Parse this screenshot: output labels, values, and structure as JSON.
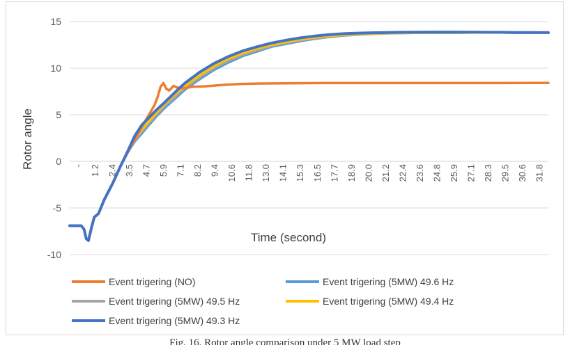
{
  "caption": "Fig. 16. Rotor angle comparison under 5 MW load step",
  "chart_data": {
    "type": "line",
    "title": "",
    "xlabel": "Time (second)",
    "ylabel": "Rotor angle",
    "xlim": [
      0,
      33.2
    ],
    "ylim": [
      -10,
      15
    ],
    "yticks": [
      -10,
      -5,
      0,
      5,
      10,
      15
    ],
    "xtick_labels": [
      "-",
      "1.2",
      "2.4",
      "3.5",
      "4.7",
      "5.9",
      "7.1",
      "8.2",
      "9.4",
      "10.6",
      "11.8",
      "13.0",
      "14.1",
      "15.3",
      "16.5",
      "17.7",
      "18.9",
      "20.0",
      "21.2",
      "22.4",
      "23.6",
      "24.8",
      "25.9",
      "27.1",
      "28.3",
      "29.5",
      "30.6",
      "31.8"
    ],
    "grid": true,
    "legend_position": "bottom",
    "series": [
      {
        "name": "Event trigering (NO)",
        "color": "#ED7D31",
        "x": [
          0,
          0.8,
          1.0,
          1.15,
          1.3,
          1.5,
          1.7,
          2.0,
          2.4,
          3.0,
          3.5,
          4.0,
          4.5,
          5.0,
          5.5,
          5.9,
          6.1,
          6.3,
          6.5,
          6.7,
          6.9,
          7.2,
          7.5,
          8.0,
          8.5,
          9.4,
          10.6,
          11.8,
          13.0,
          15.0,
          17.7,
          20.0,
          25.0,
          30.0,
          33.2
        ],
        "values": [
          -6.9,
          -6.9,
          -7.3,
          -8.3,
          -8.5,
          -7.2,
          -6.0,
          -5.6,
          -4.1,
          -2.3,
          -0.6,
          0.9,
          2.3,
          3.7,
          5.0,
          6.1,
          6.9,
          8.0,
          8.4,
          7.8,
          7.6,
          8.1,
          7.9,
          7.85,
          8.0,
          8.05,
          8.2,
          8.3,
          8.35,
          8.38,
          8.4,
          8.4,
          8.4,
          8.4,
          8.42
        ]
      },
      {
        "name": "Event trigering (5MW) 49.6 Hz",
        "color": "#5B9BD5",
        "x": [
          0,
          0.8,
          1.0,
          1.15,
          1.3,
          1.5,
          1.7,
          2.0,
          2.4,
          3.0,
          3.5,
          4.0,
          4.5,
          5.0,
          5.5,
          6.0,
          6.5,
          7.0,
          7.5,
          8.0,
          9.0,
          10.0,
          11.0,
          12.0,
          13.0,
          14.0,
          15.0,
          16.0,
          17.0,
          18.0,
          19.0,
          20.0,
          21.0,
          22.0,
          23.0,
          24.0,
          25.0,
          26.0,
          27.0,
          28.0,
          29.0,
          30.0,
          31.0,
          32.0,
          33.2
        ],
        "values": [
          -6.9,
          -6.9,
          -7.3,
          -8.3,
          -8.5,
          -7.2,
          -6.0,
          -5.6,
          -4.1,
          -2.3,
          -0.6,
          0.9,
          2.1,
          3.0,
          3.9,
          4.8,
          5.6,
          6.3,
          7.0,
          7.7,
          8.8,
          9.8,
          10.6,
          11.3,
          11.8,
          12.3,
          12.6,
          12.9,
          13.15,
          13.35,
          13.5,
          13.6,
          13.68,
          13.73,
          13.76,
          13.78,
          13.8,
          13.8,
          13.8,
          13.82,
          13.82,
          13.82,
          13.8,
          13.8,
          13.8
        ]
      },
      {
        "name": "Event trigering (5MW) 49.5 Hz",
        "color": "#A5A5A5",
        "x": [
          0,
          0.8,
          1.0,
          1.15,
          1.3,
          1.5,
          1.7,
          2.0,
          2.4,
          3.0,
          3.5,
          4.0,
          4.5,
          5.0,
          5.5,
          6.0,
          6.5,
          7.0,
          7.5,
          8.0,
          9.0,
          10.0,
          11.0,
          12.0,
          13.0,
          14.0,
          15.0,
          16.0,
          17.0,
          18.0,
          19.0,
          20.0,
          21.0,
          22.0,
          23.0,
          24.0,
          25.0,
          26.0,
          27.0,
          28.0,
          29.0,
          30.0,
          31.0,
          32.0,
          33.2
        ],
        "values": [
          -6.9,
          -6.9,
          -7.3,
          -8.3,
          -8.5,
          -7.2,
          -6.0,
          -5.6,
          -4.1,
          -2.3,
          -0.6,
          0.9,
          2.2,
          3.2,
          4.1,
          5.0,
          5.8,
          6.5,
          7.2,
          7.9,
          9.0,
          10.0,
          10.8,
          11.45,
          11.95,
          12.4,
          12.7,
          13.0,
          13.2,
          13.4,
          13.52,
          13.62,
          13.7,
          13.75,
          13.78,
          13.8,
          13.81,
          13.82,
          13.82,
          13.82,
          13.82,
          13.82,
          13.81,
          13.8,
          13.8
        ]
      },
      {
        "name": "Event trigering (5MW) 49.4 Hz",
        "color": "#FFC000",
        "x": [
          0,
          0.8,
          1.0,
          1.15,
          1.3,
          1.5,
          1.7,
          2.0,
          2.4,
          3.0,
          3.5,
          4.0,
          4.5,
          5.0,
          5.5,
          6.0,
          6.5,
          7.0,
          7.5,
          8.0,
          9.0,
          10.0,
          11.0,
          12.0,
          13.0,
          14.0,
          15.0,
          16.0,
          17.0,
          18.0,
          19.0,
          20.0,
          21.0,
          22.0,
          23.0,
          24.0,
          25.0,
          26.0,
          27.0,
          28.0,
          29.0,
          30.0,
          31.0,
          32.0,
          33.2
        ],
        "values": [
          -6.9,
          -6.9,
          -7.3,
          -8.3,
          -8.5,
          -7.2,
          -6.0,
          -5.6,
          -4.1,
          -2.3,
          -0.6,
          1.0,
          2.4,
          3.4,
          4.3,
          5.2,
          6.0,
          6.75,
          7.45,
          8.1,
          9.2,
          10.2,
          11.0,
          11.6,
          12.1,
          12.5,
          12.8,
          13.08,
          13.28,
          13.45,
          13.57,
          13.66,
          13.72,
          13.76,
          13.79,
          13.81,
          13.82,
          13.83,
          13.83,
          13.83,
          13.83,
          13.83,
          13.82,
          13.81,
          13.8
        ]
      },
      {
        "name": "Event trigering (5MW) 49.3 Hz",
        "color": "#4472C4",
        "x": [
          0,
          0.8,
          1.0,
          1.15,
          1.3,
          1.5,
          1.7,
          2.0,
          2.4,
          3.0,
          3.5,
          4.0,
          4.5,
          5.0,
          5.5,
          6.0,
          6.5,
          7.0,
          7.5,
          8.0,
          9.0,
          10.0,
          11.0,
          12.0,
          13.0,
          14.0,
          15.0,
          16.0,
          17.0,
          18.0,
          19.0,
          20.0,
          21.0,
          22.0,
          23.0,
          24.0,
          25.0,
          26.0,
          27.0,
          28.0,
          29.0,
          30.0,
          31.0,
          32.0,
          33.2
        ],
        "values": [
          -6.9,
          -6.9,
          -7.3,
          -8.3,
          -8.5,
          -7.2,
          -6.0,
          -5.6,
          -4.1,
          -2.3,
          -0.6,
          1.0,
          2.7,
          3.9,
          4.7,
          5.5,
          6.2,
          6.95,
          7.7,
          8.4,
          9.55,
          10.5,
          11.25,
          11.85,
          12.3,
          12.7,
          13.0,
          13.25,
          13.45,
          13.6,
          13.7,
          13.76,
          13.8,
          13.83,
          13.85,
          13.86,
          13.87,
          13.87,
          13.87,
          13.86,
          13.85,
          13.84,
          13.83,
          13.82,
          13.81
        ]
      }
    ]
  }
}
